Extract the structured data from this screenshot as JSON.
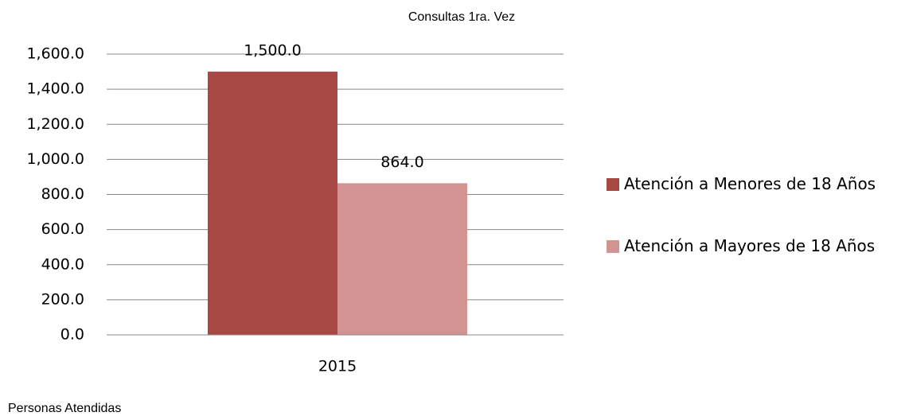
{
  "chart_data": {
    "type": "bar",
    "title": "Consultas 1ra. Vez",
    "y_axis_label": "Personas Atendidas",
    "categories": [
      "2015"
    ],
    "series": [
      {
        "name": "Atención a Menores de 18 Años",
        "color": "#a84845",
        "values": [
          1500
        ],
        "value_labels": [
          "1,500.0"
        ]
      },
      {
        "name": "Atención a Mayores de 18 Años",
        "color": "#d39393",
        "values": [
          864
        ],
        "value_labels": [
          "864.0"
        ]
      }
    ],
    "ylim": [
      0,
      1600
    ],
    "yticks": [
      {
        "value": 0,
        "label": "0.0"
      },
      {
        "value": 200,
        "label": "200.0"
      },
      {
        "value": 400,
        "label": "400.0"
      },
      {
        "value": 600,
        "label": "600.0"
      },
      {
        "value": 800,
        "label": "800.0"
      },
      {
        "value": 1000,
        "label": "1,000.0"
      },
      {
        "value": 1200,
        "label": "1,200.0"
      },
      {
        "value": 1400,
        "label": "1,400.0"
      },
      {
        "value": 1600,
        "label": "1,600.0"
      }
    ],
    "grid": true,
    "legend": "right"
  }
}
